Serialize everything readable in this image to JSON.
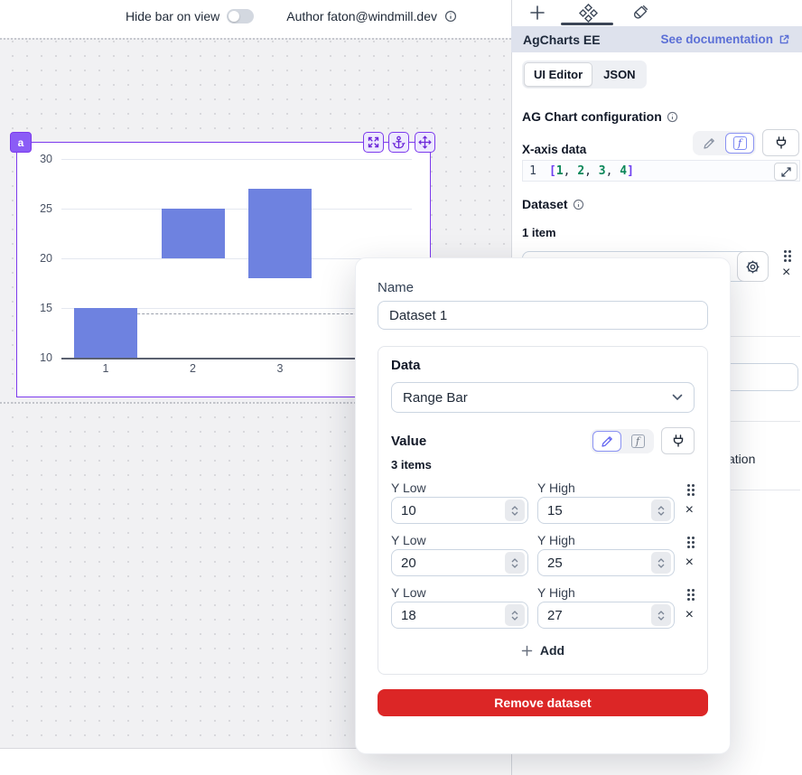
{
  "toolbar": {
    "hide_bar_label": "Hide bar on view",
    "author_label": "Author faton@windmill.dev"
  },
  "component": {
    "badge": "a"
  },
  "chart_data": {
    "type": "bar",
    "subtype": "range-bar",
    "categories": [
      1,
      2,
      3,
      4
    ],
    "series": [
      {
        "name": "Dataset 1",
        "ranges": [
          [
            10,
            15
          ],
          [
            20,
            25
          ],
          [
            18,
            27
          ]
        ]
      }
    ],
    "yticks": [
      10,
      15,
      20,
      25,
      30
    ],
    "ylim": [
      10,
      30
    ],
    "title": "",
    "xlabel": "",
    "ylabel": "",
    "grid": true,
    "legend": false,
    "dashed_line_y": 14.5,
    "bar_color": "#6e82e0"
  },
  "panel": {
    "title": "AgCharts EE",
    "doc_link": "See documentation",
    "view_tabs": {
      "ui_editor": "UI Editor",
      "json": "JSON"
    },
    "section_heading": "AG Chart configuration",
    "xaxis_label": "X-axis data",
    "code_line_number": "1",
    "code_tokens": [
      {
        "text": "[",
        "cls": "tok-bracket"
      },
      {
        "text": "1",
        "cls": "tok-num"
      },
      {
        "text": ", ",
        "cls": "tok-plain"
      },
      {
        "text": "2",
        "cls": "tok-num"
      },
      {
        "text": ", ",
        "cls": "tok-plain"
      },
      {
        "text": "3",
        "cls": "tok-num"
      },
      {
        "text": ", ",
        "cls": "tok-plain"
      },
      {
        "text": "4",
        "cls": "tok-num"
      },
      {
        "text": "]",
        "cls": "tok-bracket"
      }
    ],
    "dataset_label": "Dataset",
    "items_count": "1 item",
    "hidden_fragment": "ation"
  },
  "modal": {
    "name_label": "Name",
    "name_value": "Dataset 1",
    "data_label": "Data",
    "data_type": "Range Bar",
    "value_label": "Value",
    "items_count": "3 items",
    "rows": [
      {
        "low_label": "Y Low",
        "high_label": "Y High",
        "low": "10",
        "high": "15"
      },
      {
        "low_label": "Y Low",
        "high_label": "Y High",
        "low": "20",
        "high": "25"
      },
      {
        "low_label": "Y Low",
        "high_label": "Y High",
        "low": "18",
        "high": "27"
      }
    ],
    "add_label": "Add",
    "remove_label": "Remove dataset"
  },
  "colors": {
    "accent": "#7c3aed",
    "accent_light": "#ede9fe",
    "bar": "#6e82e0",
    "danger": "#dc2626",
    "link": "#5b6fd6"
  }
}
